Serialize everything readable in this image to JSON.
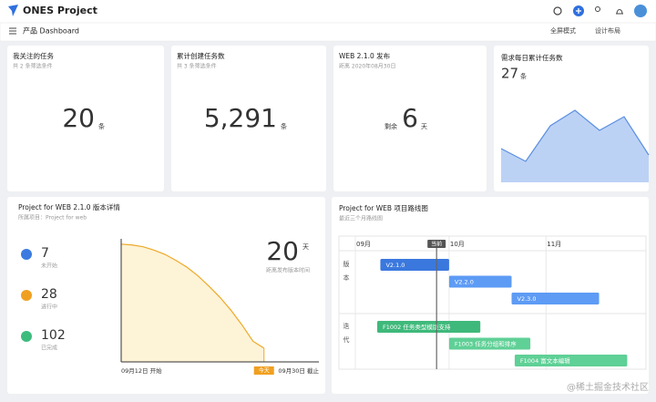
{
  "header": {
    "app_name": "ONES Project"
  },
  "toolbar": {
    "breadcrumb": "产品 Dashboard",
    "actions": [
      "全屏模式",
      "设计布局"
    ]
  },
  "cards": [
    {
      "title": "我关注的任务",
      "subtitle": "共 2 条筛选条件",
      "value": 20,
      "unit": "条"
    },
    {
      "title": "累计创建任务数",
      "subtitle": "共 3 条筛选条件",
      "value": "5,291",
      "unit": "条"
    },
    {
      "title": "WEB 2.1.0 发布",
      "subtitle": "距离 2020年08月30日",
      "prefix": "剩余",
      "value": 6,
      "unit": "天"
    },
    {
      "title": "需求每日累计任务数",
      "value": 27,
      "unit": "条",
      "chart_data": {
        "type": "area",
        "values": [
          37,
          23,
          62,
          79,
          57,
          72,
          30
        ],
        "ylim": [
          0,
          100
        ],
        "color": "#bcd2f5",
        "line_color": "#5b8fe0"
      }
    }
  ],
  "version_detail": {
    "title": "Project for WEB 2.1.0 版本详情",
    "subtitle": "所属项目：Project for web",
    "stats": [
      {
        "value": 7,
        "label": "未开始",
        "color": "#3b7be0"
      },
      {
        "value": 28,
        "label": "进行中",
        "color": "#f0a020"
      },
      {
        "value": 102,
        "label": "已完成",
        "color": "#3dbc7d"
      }
    ],
    "countdown": {
      "value": 20,
      "unit": "天",
      "label": "距离发布版本时间"
    },
    "chart_data": {
      "type": "area",
      "values": [
        137,
        136,
        134,
        130,
        125,
        118,
        110,
        100,
        88,
        75,
        60,
        43,
        24,
        16
      ],
      "xlim": [
        0,
        18
      ],
      "ylim": [
        0,
        140
      ],
      "color": "#fdf3d6",
      "line_color": "#eda928",
      "start_label": "09月12日 开始",
      "today": {
        "value": 13,
        "label": "今天"
      },
      "end_label": "09月30日 截止"
    }
  },
  "roadmap": {
    "title": "Project for WEB 项目路线图",
    "subtitle": "最近三个月路线图",
    "chart_data": {
      "type": "gantt",
      "xlim": [
        0,
        93
      ],
      "xticks": [
        {
          "value": 0,
          "label": "09月"
        },
        {
          "value": 30,
          "label": "10月"
        },
        {
          "value": 61,
          "label": "11月"
        }
      ],
      "today": {
        "value": 26,
        "label": "当前"
      },
      "groups": [
        {
          "label": "版本",
          "bars": [
            {
              "name": "V2.1.0",
              "start": 8,
              "end": 30,
              "color": "#3a78de"
            },
            {
              "name": "V2.2.0",
              "start": 30,
              "end": 50,
              "color": "#5d9bf5"
            },
            {
              "name": "V2.3.0",
              "start": 50,
              "end": 78,
              "color": "#5d9bf5"
            }
          ]
        },
        {
          "label": "迭代",
          "bars": [
            {
              "name": "F1002 任务类型模版支持",
              "start": 7,
              "end": 40,
              "color": "#3fb97b"
            },
            {
              "name": "F1003 任务分组和排序",
              "start": 30,
              "end": 56,
              "color": "#5fd096"
            },
            {
              "name": "F1004 富文本编辑",
              "start": 51,
              "end": 87,
              "color": "#5fd096"
            }
          ]
        }
      ]
    }
  },
  "watermark": "@稀土掘金技术社区"
}
